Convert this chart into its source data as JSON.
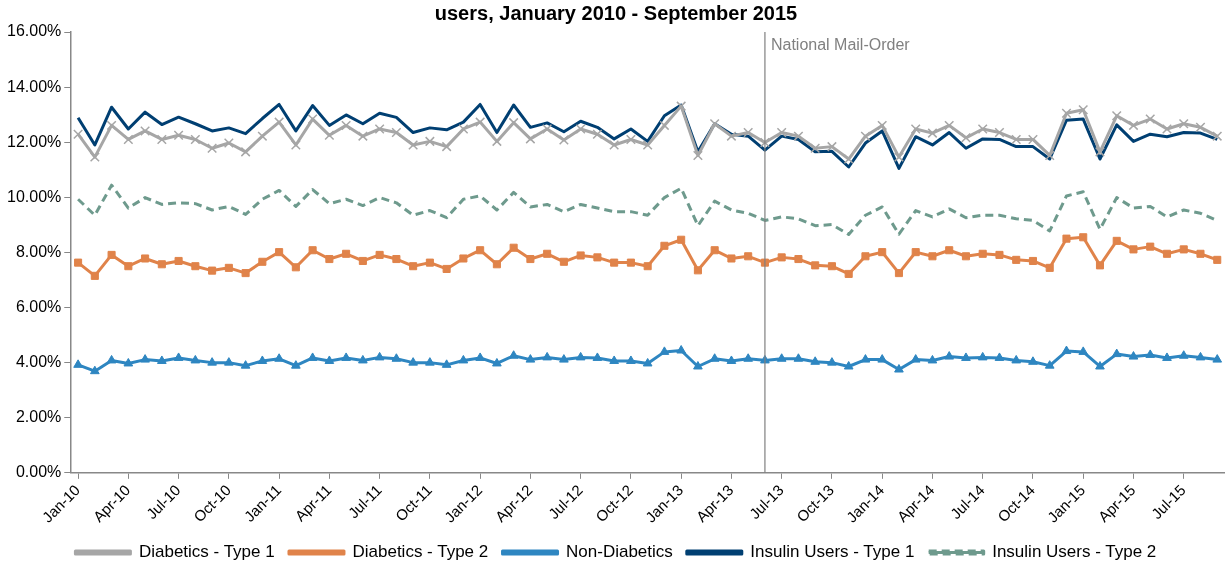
{
  "chart_data": {
    "type": "line",
    "title": "users, January 2010 - September 2015",
    "x": [
      "2010-01",
      "2010-02",
      "2010-03",
      "2010-04",
      "2010-05",
      "2010-06",
      "2010-07",
      "2010-08",
      "2010-09",
      "2010-10",
      "2010-11",
      "2010-12",
      "2011-01",
      "2011-02",
      "2011-03",
      "2011-04",
      "2011-05",
      "2011-06",
      "2011-07",
      "2011-08",
      "2011-09",
      "2011-10",
      "2011-11",
      "2011-12",
      "2012-01",
      "2012-02",
      "2012-03",
      "2012-04",
      "2012-05",
      "2012-06",
      "2012-07",
      "2012-08",
      "2012-09",
      "2012-10",
      "2012-11",
      "2012-12",
      "2013-01",
      "2013-02",
      "2013-03",
      "2013-04",
      "2013-05",
      "2013-06",
      "2013-07",
      "2013-08",
      "2013-09",
      "2013-10",
      "2013-11",
      "2013-12",
      "2014-01",
      "2014-02",
      "2014-03",
      "2014-04",
      "2014-05",
      "2014-06",
      "2014-07",
      "2014-08",
      "2014-09",
      "2014-10",
      "2014-11",
      "2014-12",
      "2015-01",
      "2015-02",
      "2015-03",
      "2015-04",
      "2015-05",
      "2015-06",
      "2015-07",
      "2015-08",
      "2015-09"
    ],
    "series": [
      {
        "name": "Diabetics - Type 1",
        "color": "#a6a6a6",
        "marker": "cross",
        "values": [
          12.29,
          11.46,
          12.61,
          12.1,
          12.41,
          12.1,
          12.25,
          12.1,
          11.78,
          11.97,
          11.65,
          12.22,
          12.73,
          11.9,
          12.84,
          12.25,
          12.61,
          12.22,
          12.48,
          12.35,
          11.9,
          12.03,
          11.84,
          12.48,
          12.73,
          12.03,
          12.71,
          12.12,
          12.48,
          12.08,
          12.48,
          12.29,
          11.9,
          12.1,
          11.9,
          12.61,
          13.31,
          11.52,
          12.67,
          12.22,
          12.35,
          11.99,
          12.35,
          12.22,
          11.78,
          11.84,
          11.39,
          12.22,
          12.61,
          11.46,
          12.48,
          12.33,
          12.61,
          12.16,
          12.48,
          12.35,
          12.1,
          12.1,
          11.52,
          13.05,
          13.18,
          11.65,
          12.96,
          12.61,
          12.84,
          12.48,
          12.67,
          12.54,
          12.22
        ]
      },
      {
        "name": "Diabetics - Type 2",
        "color": "#e0834a",
        "marker": "square",
        "values": [
          7.63,
          7.15,
          7.91,
          7.5,
          7.78,
          7.57,
          7.69,
          7.5,
          7.34,
          7.44,
          7.25,
          7.66,
          8.01,
          7.46,
          8.08,
          7.76,
          7.95,
          7.69,
          7.91,
          7.76,
          7.5,
          7.63,
          7.4,
          7.78,
          8.08,
          7.57,
          8.17,
          7.76,
          7.95,
          7.66,
          7.89,
          7.82,
          7.63,
          7.63,
          7.5,
          8.24,
          8.46,
          7.35,
          8.08,
          7.78,
          7.86,
          7.63,
          7.82,
          7.76,
          7.53,
          7.5,
          7.22,
          7.86,
          8.01,
          7.25,
          8.01,
          7.86,
          8.08,
          7.86,
          7.95,
          7.91,
          7.73,
          7.69,
          7.44,
          8.5,
          8.55,
          7.53,
          8.42,
          8.11,
          8.21,
          7.95,
          8.11,
          7.95,
          7.73
        ]
      },
      {
        "name": "Non-Diabetics",
        "color": "#2e86c1",
        "marker": "triangle",
        "values": [
          3.92,
          3.69,
          4.08,
          3.97,
          4.11,
          4.06,
          4.17,
          4.08,
          4.0,
          4.0,
          3.89,
          4.06,
          4.14,
          3.89,
          4.17,
          4.06,
          4.17,
          4.08,
          4.19,
          4.14,
          4.0,
          4.0,
          3.92,
          4.08,
          4.17,
          3.97,
          4.25,
          4.11,
          4.19,
          4.11,
          4.19,
          4.17,
          4.06,
          4.06,
          3.97,
          4.39,
          4.44,
          3.86,
          4.14,
          4.06,
          4.14,
          4.08,
          4.14,
          4.14,
          4.03,
          4.0,
          3.86,
          4.11,
          4.11,
          3.75,
          4.11,
          4.08,
          4.22,
          4.17,
          4.19,
          4.17,
          4.08,
          4.03,
          3.89,
          4.42,
          4.39,
          3.86,
          4.31,
          4.22,
          4.28,
          4.17,
          4.25,
          4.19,
          4.11
        ]
      },
      {
        "name": "Insulin Users - Type 1",
        "color": "#003f72",
        "marker": "none",
        "values": [
          12.89,
          11.9,
          13.27,
          12.48,
          13.09,
          12.64,
          12.91,
          12.67,
          12.41,
          12.52,
          12.31,
          12.86,
          13.37,
          12.41,
          13.33,
          12.61,
          12.99,
          12.67,
          13.05,
          12.9,
          12.35,
          12.52,
          12.45,
          12.73,
          13.37,
          12.35,
          13.35,
          12.54,
          12.7,
          12.38,
          12.76,
          12.54,
          12.12,
          12.48,
          12.03,
          12.96,
          13.35,
          11.65,
          12.67,
          12.29,
          12.22,
          11.71,
          12.22,
          12.1,
          11.65,
          11.67,
          11.1,
          11.97,
          12.41,
          11.05,
          12.2,
          11.9,
          12.35,
          11.78,
          12.12,
          12.1,
          11.84,
          11.84,
          11.39,
          12.8,
          12.84,
          11.39,
          12.63,
          12.03,
          12.29,
          12.2,
          12.35,
          12.33,
          12.1
        ]
      },
      {
        "name": "Insulin Users - Type 2",
        "color": "#6e9a8d",
        "marker": "none",
        "line_style": "dashed",
        "values": [
          9.93,
          9.35,
          10.44,
          9.61,
          9.99,
          9.74,
          9.8,
          9.77,
          9.54,
          9.67,
          9.38,
          9.93,
          10.25,
          9.67,
          10.28,
          9.77,
          9.93,
          9.7,
          9.99,
          9.8,
          9.35,
          9.52,
          9.26,
          9.93,
          10.05,
          9.54,
          10.18,
          9.65,
          9.74,
          9.48,
          9.74,
          9.61,
          9.48,
          9.48,
          9.35,
          9.99,
          10.33,
          8.97,
          9.86,
          9.54,
          9.42,
          9.16,
          9.29,
          9.22,
          8.97,
          9.01,
          8.65,
          9.35,
          9.65,
          8.66,
          9.52,
          9.29,
          9.58,
          9.26,
          9.35,
          9.35,
          9.22,
          9.16,
          8.78,
          10.05,
          10.2,
          8.84,
          9.99,
          9.61,
          9.67,
          9.29,
          9.54,
          9.42,
          9.16
        ]
      }
    ],
    "xlim": [
      "2009-12-17",
      "2015-09-14"
    ],
    "xticks": [
      {
        "value": "2010-01",
        "label": "Jan-10"
      },
      {
        "value": "2010-04",
        "label": "Apr-10"
      },
      {
        "value": "2010-07",
        "label": "Jul-10"
      },
      {
        "value": "2010-10",
        "label": "Oct-10"
      },
      {
        "value": "2011-01",
        "label": "Jan-11"
      },
      {
        "value": "2011-04",
        "label": "Apr-11"
      },
      {
        "value": "2011-07",
        "label": "Jul-11"
      },
      {
        "value": "2011-10",
        "label": "Oct-11"
      },
      {
        "value": "2012-01",
        "label": "Jan-12"
      },
      {
        "value": "2012-04",
        "label": "Apr-12"
      },
      {
        "value": "2012-07",
        "label": "Jul-12"
      },
      {
        "value": "2012-10",
        "label": "Oct-12"
      },
      {
        "value": "2013-01",
        "label": "Jan-13"
      },
      {
        "value": "2013-04",
        "label": "Apr-13"
      },
      {
        "value": "2013-07",
        "label": "Jul-13"
      },
      {
        "value": "2013-10",
        "label": "Oct-13"
      },
      {
        "value": "2014-01",
        "label": "Jan-14"
      },
      {
        "value": "2014-04",
        "label": "Apr-14"
      },
      {
        "value": "2014-07",
        "label": "Jul-14"
      },
      {
        "value": "2014-10",
        "label": "Oct-14"
      },
      {
        "value": "2015-01",
        "label": "Jan-15"
      },
      {
        "value": "2015-04",
        "label": "Apr-15"
      },
      {
        "value": "2015-07",
        "label": "Jul-15"
      }
    ],
    "ylim": [
      0,
      16
    ],
    "yticks": [
      {
        "value": 0,
        "label": "0.00%"
      },
      {
        "value": 2,
        "label": "2.00%"
      },
      {
        "value": 4,
        "label": "4.00%"
      },
      {
        "value": 6,
        "label": "6.00%"
      },
      {
        "value": 8,
        "label": "8.00%"
      },
      {
        "value": 10,
        "label": "10.00%"
      },
      {
        "value": 12,
        "label": "12.00%"
      },
      {
        "value": 14,
        "label": "14.00%"
      },
      {
        "value": 16,
        "label": "16.00%"
      }
    ],
    "ref_lines": [
      {
        "axis": "x",
        "value": "2013-06",
        "label": "National Mail-Order",
        "color": "#808080"
      }
    ],
    "grid": false,
    "legend": "bottom"
  }
}
